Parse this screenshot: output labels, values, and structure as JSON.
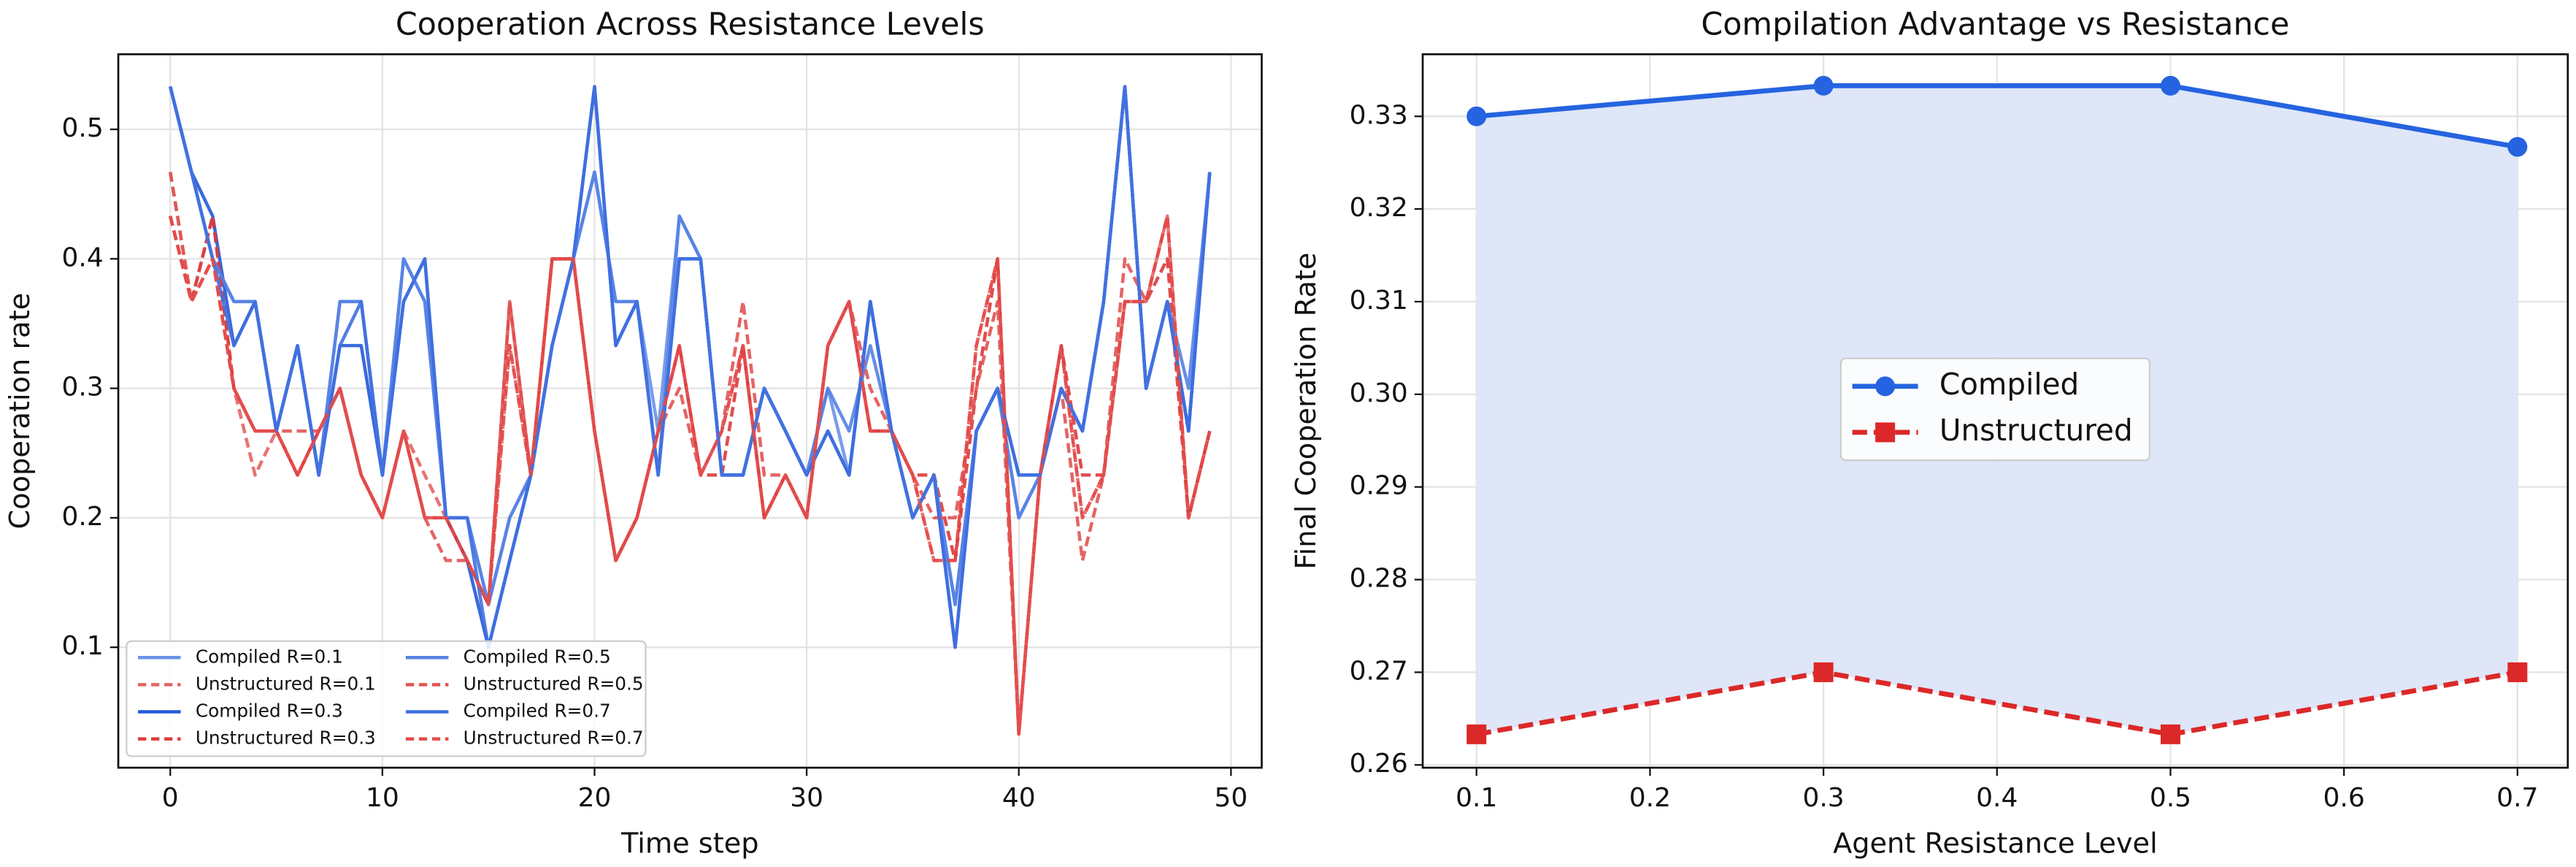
{
  "chart_data": [
    {
      "type": "line",
      "title": "Cooperation Across Resistance Levels",
      "xlabel": "Time step",
      "ylabel": "Cooperation rate",
      "x": [
        0,
        1,
        2,
        3,
        4,
        5,
        6,
        7,
        8,
        9,
        10,
        11,
        12,
        13,
        14,
        15,
        16,
        17,
        18,
        19,
        20,
        21,
        22,
        23,
        24,
        25,
        26,
        27,
        28,
        29,
        30,
        31,
        32,
        33,
        34,
        35,
        36,
        37,
        38,
        39,
        40,
        41,
        42,
        43,
        44,
        45,
        46,
        47,
        48,
        49
      ],
      "xlim": [
        -2.45,
        51.45
      ],
      "xticks": [
        0,
        10,
        20,
        30,
        40,
        50
      ],
      "ylim": [
        0.007,
        0.558
      ],
      "yticks": [
        0.1,
        0.2,
        0.3,
        0.4,
        0.5
      ],
      "grid": true,
      "legend": "lower left",
      "legend_columns": 2,
      "series": [
        {
          "name": "Compiled R=0.1",
          "color": "#6a92e8",
          "linestyle": "solid",
          "values": [
            0.533,
            0.467,
            0.4,
            0.367,
            0.367,
            0.267,
            0.333,
            0.233,
            0.367,
            0.367,
            0.233,
            0.4,
            0.367,
            0.2,
            0.2,
            0.133,
            0.2,
            0.233,
            0.333,
            0.4,
            0.467,
            0.367,
            0.367,
            0.267,
            0.433,
            0.4,
            0.233,
            0.233,
            0.3,
            0.267,
            0.233,
            0.3,
            0.233,
            0.367,
            0.267,
            0.2,
            0.233,
            0.133,
            0.267,
            0.3,
            0.2,
            0.233,
            0.3,
            0.267,
            0.367,
            0.533,
            0.3,
            0.367,
            0.267,
            0.467
          ]
        },
        {
          "name": "Unstructured R=0.1",
          "color": "#e36464",
          "linestyle": "dashed",
          "values": [
            0.467,
            0.367,
            0.433,
            0.3,
            0.233,
            0.267,
            0.233,
            0.267,
            0.3,
            0.233,
            0.2,
            0.267,
            0.233,
            0.2,
            0.167,
            0.133,
            0.333,
            0.233,
            0.4,
            0.4,
            0.267,
            0.167,
            0.2,
            0.267,
            0.333,
            0.233,
            0.267,
            0.333,
            0.2,
            0.233,
            0.2,
            0.333,
            0.367,
            0.267,
            0.267,
            0.233,
            0.167,
            0.167,
            0.333,
            0.4,
            0.033,
            0.233,
            0.333,
            0.2,
            0.233,
            0.367,
            0.367,
            0.433,
            0.2,
            0.267
          ]
        },
        {
          "name": "Compiled R=0.3",
          "color": "#2459d8",
          "linestyle": "solid",
          "values": [
            0.533,
            0.467,
            0.433,
            0.333,
            0.367,
            0.267,
            0.333,
            0.233,
            0.333,
            0.333,
            0.233,
            0.367,
            0.4,
            0.2,
            0.167,
            0.1,
            0.167,
            0.233,
            0.333,
            0.4,
            0.533,
            0.333,
            0.367,
            0.233,
            0.4,
            0.4,
            0.233,
            0.233,
            0.3,
            0.267,
            0.233,
            0.267,
            0.233,
            0.367,
            0.267,
            0.2,
            0.233,
            0.1,
            0.267,
            0.3,
            0.233,
            0.233,
            0.3,
            0.267,
            0.367,
            0.533,
            0.3,
            0.367,
            0.267,
            0.467
          ]
        },
        {
          "name": "Unstructured R=0.3",
          "color": "#dc3a3a",
          "linestyle": "dashed",
          "values": [
            0.433,
            0.367,
            0.433,
            0.3,
            0.267,
            0.267,
            0.233,
            0.267,
            0.3,
            0.233,
            0.2,
            0.267,
            0.2,
            0.2,
            0.167,
            0.133,
            0.367,
            0.233,
            0.4,
            0.4,
            0.267,
            0.167,
            0.2,
            0.267,
            0.333,
            0.233,
            0.233,
            0.333,
            0.2,
            0.233,
            0.2,
            0.333,
            0.367,
            0.267,
            0.267,
            0.233,
            0.233,
            0.167,
            0.3,
            0.4,
            0.033,
            0.233,
            0.333,
            0.233,
            0.233,
            0.367,
            0.367,
            0.4,
            0.2,
            0.267
          ]
        },
        {
          "name": "Compiled R=0.5",
          "color": "#5582e4",
          "linestyle": "solid",
          "values": [
            0.533,
            0.467,
            0.4,
            0.367,
            0.367,
            0.267,
            0.333,
            0.233,
            0.367,
            0.367,
            0.233,
            0.4,
            0.367,
            0.2,
            0.2,
            0.133,
            0.2,
            0.233,
            0.333,
            0.4,
            0.467,
            0.367,
            0.367,
            0.233,
            0.433,
            0.4,
            0.233,
            0.233,
            0.3,
            0.267,
            0.233,
            0.3,
            0.267,
            0.333,
            0.267,
            0.2,
            0.233,
            0.133,
            0.267,
            0.3,
            0.2,
            0.233,
            0.3,
            0.267,
            0.367,
            0.533,
            0.3,
            0.367,
            0.3,
            0.467
          ]
        },
        {
          "name": "Unstructured R=0.5",
          "color": "#e05454",
          "linestyle": "dashed",
          "values": [
            0.467,
            0.367,
            0.4,
            0.3,
            0.267,
            0.267,
            0.267,
            0.267,
            0.3,
            0.233,
            0.2,
            0.267,
            0.2,
            0.167,
            0.167,
            0.133,
            0.367,
            0.233,
            0.4,
            0.4,
            0.267,
            0.167,
            0.2,
            0.267,
            0.3,
            0.233,
            0.267,
            0.367,
            0.233,
            0.233,
            0.2,
            0.333,
            0.367,
            0.3,
            0.267,
            0.233,
            0.2,
            0.2,
            0.3,
            0.367,
            0.033,
            0.233,
            0.3,
            0.167,
            0.233,
            0.4,
            0.367,
            0.433,
            0.2,
            0.267
          ]
        },
        {
          "name": "Compiled R=0.7",
          "color": "#3f70df",
          "linestyle": "solid",
          "values": [
            0.533,
            0.467,
            0.4,
            0.333,
            0.367,
            0.267,
            0.333,
            0.233,
            0.333,
            0.367,
            0.233,
            0.367,
            0.4,
            0.2,
            0.2,
            0.1,
            0.167,
            0.233,
            0.333,
            0.4,
            0.533,
            0.333,
            0.367,
            0.233,
            0.4,
            0.4,
            0.233,
            0.233,
            0.3,
            0.267,
            0.233,
            0.267,
            0.233,
            0.367,
            0.267,
            0.2,
            0.233,
            0.1,
            0.267,
            0.3,
            0.233,
            0.233,
            0.3,
            0.267,
            0.367,
            0.533,
            0.3,
            0.367,
            0.267,
            0.467
          ]
        },
        {
          "name": "Unstructured R=0.7",
          "color": "#e44a4a",
          "linestyle": "dashed",
          "values": [
            0.433,
            0.367,
            0.4,
            0.3,
            0.267,
            0.267,
            0.233,
            0.267,
            0.3,
            0.233,
            0.2,
            0.267,
            0.2,
            0.2,
            0.167,
            0.133,
            0.333,
            0.233,
            0.4,
            0.4,
            0.267,
            0.167,
            0.2,
            0.267,
            0.333,
            0.233,
            0.267,
            0.333,
            0.2,
            0.233,
            0.2,
            0.333,
            0.367,
            0.267,
            0.267,
            0.233,
            0.167,
            0.167,
            0.333,
            0.4,
            0.033,
            0.233,
            0.333,
            0.2,
            0.233,
            0.367,
            0.367,
            0.433,
            0.2,
            0.267
          ]
        }
      ]
    },
    {
      "type": "line",
      "title": "Compilation Advantage vs Resistance",
      "xlabel": "Agent Resistance Level",
      "ylabel": "Final Cooperation Rate",
      "x": [
        0.1,
        0.3,
        0.5,
        0.7
      ],
      "xlim": [
        0.069,
        0.729
      ],
      "xticks": [
        0.1,
        0.2,
        0.3,
        0.4,
        0.5,
        0.6,
        0.7
      ],
      "ylim": [
        0.2597,
        0.3367
      ],
      "yticks": [
        0.26,
        0.27,
        0.28,
        0.29,
        {
          "value": 0.3,
          "label": "0.30"
        },
        0.31,
        0.32,
        0.33
      ],
      "grid": true,
      "legend": "center",
      "legend_columns": 1,
      "fill_between_color": "#dce5f8",
      "series": [
        {
          "name": "Compiled",
          "color": "#2563e0",
          "linestyle": "solid",
          "marker": "circle",
          "values": [
            0.33,
            0.3333,
            0.3333,
            0.3267
          ]
        },
        {
          "name": "Unstructured",
          "color": "#dc2828",
          "linestyle": "dashed",
          "marker": "square",
          "values": [
            0.2633,
            0.27,
            0.2633,
            0.27
          ]
        }
      ]
    }
  ]
}
